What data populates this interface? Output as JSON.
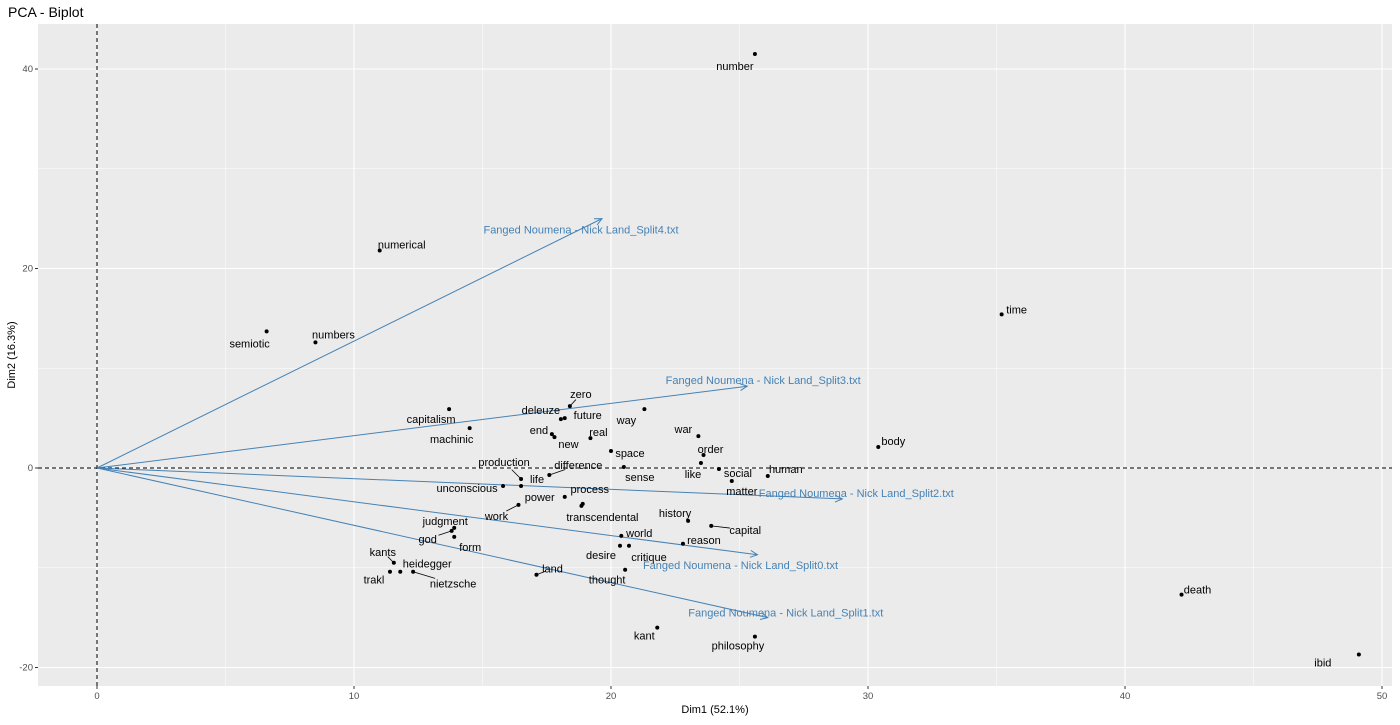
{
  "chart_data": {
    "type": "scatter",
    "title": "PCA - Biplot",
    "xlabel": "Dim1 (52.1%)",
    "ylabel": "Dim2 (16.3%)",
    "xlim": [
      -2.3,
      50.4
    ],
    "ylim": [
      -21.8,
      44.6
    ],
    "xticks": [
      0,
      10,
      20,
      30,
      40,
      50
    ],
    "yticks": [
      -20,
      0,
      20,
      40
    ],
    "grid": true,
    "reference_lines": {
      "x": 0,
      "y": 0,
      "style": "dashed"
    },
    "colors": {
      "points": "#000000",
      "variables": "#4682B4",
      "panel": "#EBEBEB",
      "grid": "#FFFFFF"
    },
    "points": [
      {
        "label": "number",
        "x": 25.6,
        "y": 41.5
      },
      {
        "label": "numerical",
        "x": 11.0,
        "y": 21.8
      },
      {
        "label": "numbers",
        "x": 8.5,
        "y": 12.6
      },
      {
        "label": "semiotic",
        "x": 6.6,
        "y": 13.7
      },
      {
        "label": "time",
        "x": 35.2,
        "y": 15.4
      },
      {
        "label": "body",
        "x": 30.4,
        "y": 2.1
      },
      {
        "label": "death",
        "x": 42.2,
        "y": -12.7
      },
      {
        "label": "ibid",
        "x": 49.1,
        "y": -18.7
      },
      {
        "label": "capitalism",
        "x": 13.7,
        "y": 5.9
      },
      {
        "label": "machinic",
        "x": 14.5,
        "y": 4.0
      },
      {
        "label": "zero",
        "x": 18.4,
        "y": 6.2
      },
      {
        "label": "deleuze",
        "x": 18.05,
        "y": 4.9
      },
      {
        "label": "future",
        "x": 18.2,
        "y": 5.0
      },
      {
        "label": "way",
        "x": 21.3,
        "y": 5.9
      },
      {
        "label": "end",
        "x": 17.7,
        "y": 3.4
      },
      {
        "label": "new",
        "x": 17.8,
        "y": 3.1
      },
      {
        "label": "real",
        "x": 19.2,
        "y": 3.0
      },
      {
        "label": "space",
        "x": 20.0,
        "y": 1.7
      },
      {
        "label": "sense",
        "x": 20.5,
        "y": 0.1
      },
      {
        "label": "war",
        "x": 23.4,
        "y": 3.2
      },
      {
        "label": "order",
        "x": 23.6,
        "y": 1.3
      },
      {
        "label": "like",
        "x": 23.5,
        "y": 0.5
      },
      {
        "label": "social",
        "x": 24.2,
        "y": -0.1
      },
      {
        "label": "matter",
        "x": 24.7,
        "y": -1.3
      },
      {
        "label": "human",
        "x": 26.1,
        "y": -0.8
      },
      {
        "label": "production",
        "x": 16.5,
        "y": -1.1
      },
      {
        "label": "life",
        "x": 16.5,
        "y": -1.8
      },
      {
        "label": "difference",
        "x": 17.6,
        "y": -0.7
      },
      {
        "label": "unconscious",
        "x": 15.8,
        "y": -1.8
      },
      {
        "label": "power",
        "x": 18.2,
        "y": -2.9
      },
      {
        "label": "process",
        "x": 18.9,
        "y": -3.6
      },
      {
        "label": "transcendental",
        "x": 18.85,
        "y": -3.8
      },
      {
        "label": "work",
        "x": 16.4,
        "y": -3.7
      },
      {
        "label": "history",
        "x": 23.0,
        "y": -5.3
      },
      {
        "label": "capital",
        "x": 23.9,
        "y": -5.8
      },
      {
        "label": "world",
        "x": 20.4,
        "y": -6.8
      },
      {
        "label": "reason",
        "x": 22.8,
        "y": -7.6
      },
      {
        "label": "desire",
        "x": 20.35,
        "y": -7.8
      },
      {
        "label": "critique",
        "x": 20.7,
        "y": -7.8
      },
      {
        "label": "thought",
        "x": 20.55,
        "y": -10.2
      },
      {
        "label": "land",
        "x": 17.1,
        "y": -10.7
      },
      {
        "label": "judgment",
        "x": 13.9,
        "y": -6.0
      },
      {
        "label": "god",
        "x": 13.8,
        "y": -6.3
      },
      {
        "label": "form",
        "x": 13.9,
        "y": -6.9
      },
      {
        "label": "kants",
        "x": 11.55,
        "y": -9.5
      },
      {
        "label": "trakl",
        "x": 11.4,
        "y": -10.4
      },
      {
        "label": "heidegger",
        "x": 11.8,
        "y": -10.4
      },
      {
        "label": "nietzsche",
        "x": 12.3,
        "y": -10.4
      },
      {
        "label": "kant",
        "x": 21.8,
        "y": -16.0
      },
      {
        "label": "philosophy",
        "x": 25.6,
        "y": -16.9
      }
    ],
    "variables": [
      {
        "label": "Fanged Noumena - Nick Land_Split4.txt",
        "x": 19.65,
        "y": 25.0
      },
      {
        "label": "Fanged Noumena - Nick Land_Split3.txt",
        "x": 25.3,
        "y": 8.2
      },
      {
        "label": "Fanged Noumena - Nick Land_Split2.txt",
        "x": 29.0,
        "y": -3.1
      },
      {
        "label": "Fanged Noumena - Nick Land_Split0.txt",
        "x": 25.7,
        "y": -8.7
      },
      {
        "label": "Fanged Noumena - Nick Land_Split1.txt",
        "x": 26.1,
        "y": -15.0
      }
    ]
  }
}
